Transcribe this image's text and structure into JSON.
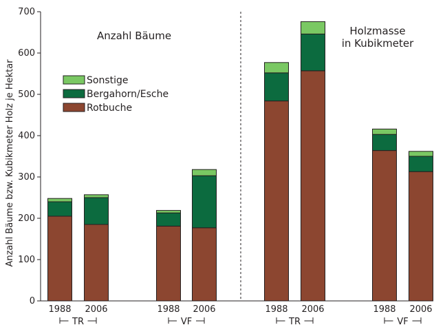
{
  "chart_data": {
    "type": "bar",
    "stacked": true,
    "ylabel": "Anzahl Bäume bzw. Kubikmeter Holz je Hektar",
    "ylim": [
      0,
      700
    ],
    "yticks": [
      "0",
      "100",
      "200",
      "300",
      "400",
      "500",
      "600",
      "700"
    ],
    "panel_titles": [
      "Anzahl Bäume",
      "Holzmasse",
      "in Kubikmeter"
    ],
    "categories": [
      "1988",
      "2006",
      "1988",
      "2006",
      "1988",
      "2006",
      "1988",
      "2006"
    ],
    "group_labels": [
      "TR",
      "VF",
      "TR",
      "VF"
    ],
    "series": [
      {
        "name": "Rotbuche",
        "color": "#8c4630",
        "values": [
          205,
          185,
          181,
          177,
          484,
          557,
          364,
          313
        ]
      },
      {
        "name": "Bergahorn/Esche",
        "color": "#0c6b3f",
        "values": [
          35,
          65,
          32,
          126,
          68,
          89,
          39,
          37
        ]
      },
      {
        "name": "Sonstige",
        "color": "#7ac863",
        "values": [
          8,
          7,
          6,
          15,
          25,
          30,
          13,
          12
        ]
      }
    ],
    "legend_order": [
      "Sonstige",
      "Bergahorn/Esche",
      "Rotbuche"
    ],
    "legend_position": "upper-left",
    "divider": "dashed line between left and right panels",
    "grid": false
  }
}
